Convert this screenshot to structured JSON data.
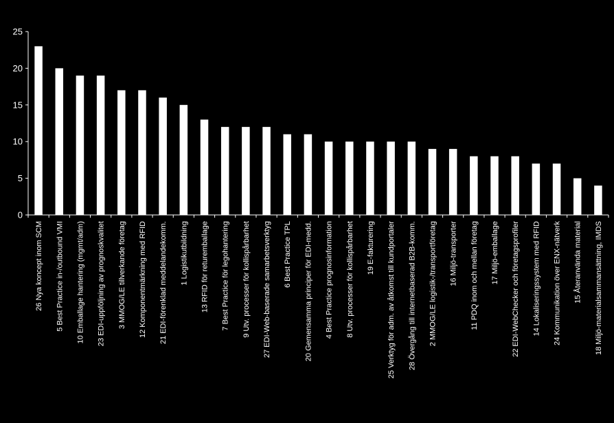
{
  "chart_data": {
    "type": "bar",
    "title": "",
    "xlabel": "",
    "ylabel": "",
    "ylim": [
      0,
      25
    ],
    "yticks": [
      0,
      5,
      10,
      15,
      20,
      25
    ],
    "grid": false,
    "legend": "none",
    "colors": {
      "background": "#000000",
      "bar": "#ffffff",
      "axis": "#ffffff",
      "text": "#ffffff"
    },
    "categories": [
      "26 Nya koncept inom SCM",
      "5 Best Practice in-/outbound VMI",
      "10 Emballage hantering (mgmt/adm)",
      "23 EDI-uppföljning av prognoskvalitet",
      "3 MMOG/LE tillverkande företag",
      "12 Komponentmärkning med RFID",
      "21 EDI-förenklad meddelandekomm.",
      "1 Logistikutbildning",
      "13 RFID för returemballage",
      "7 Best Practice för legohantering",
      "9 Utv. processer för kollispårbarhet",
      "27 EDI-Web-baserade samarbetsverktyg",
      "6 Best Practice TPL",
      "20 Gemensamma principer för EDI-medd.",
      "4 Best Practice prognosinformation",
      "8 Utv. processer för kollispårbarhet",
      "19 E-fakturering",
      "25 Verktyg för adm. av åtkomst till kundportaler",
      "28 Övergång till internetbaserad B2B-komm.",
      "2 MMOG/LE logistik-/transportföretag",
      "16 Miljö-transporter",
      "11 PDQ inom och mellan företag",
      "17 Miljö-emballage",
      "22 EDI-WebChecker och företagsprofiler",
      "14 Lokaliseringssystem med RFID",
      "24 Kommunikation över ENX-nätverk",
      "15 Återanvända material",
      "18 Miljö-materialsammansättning, IMDS"
    ],
    "values": [
      23,
      20,
      19,
      19,
      17,
      17,
      16,
      15,
      13,
      12,
      12,
      12,
      11,
      11,
      10,
      10,
      10,
      10,
      10,
      9,
      9,
      8,
      8,
      8,
      7,
      7,
      5,
      4
    ]
  }
}
